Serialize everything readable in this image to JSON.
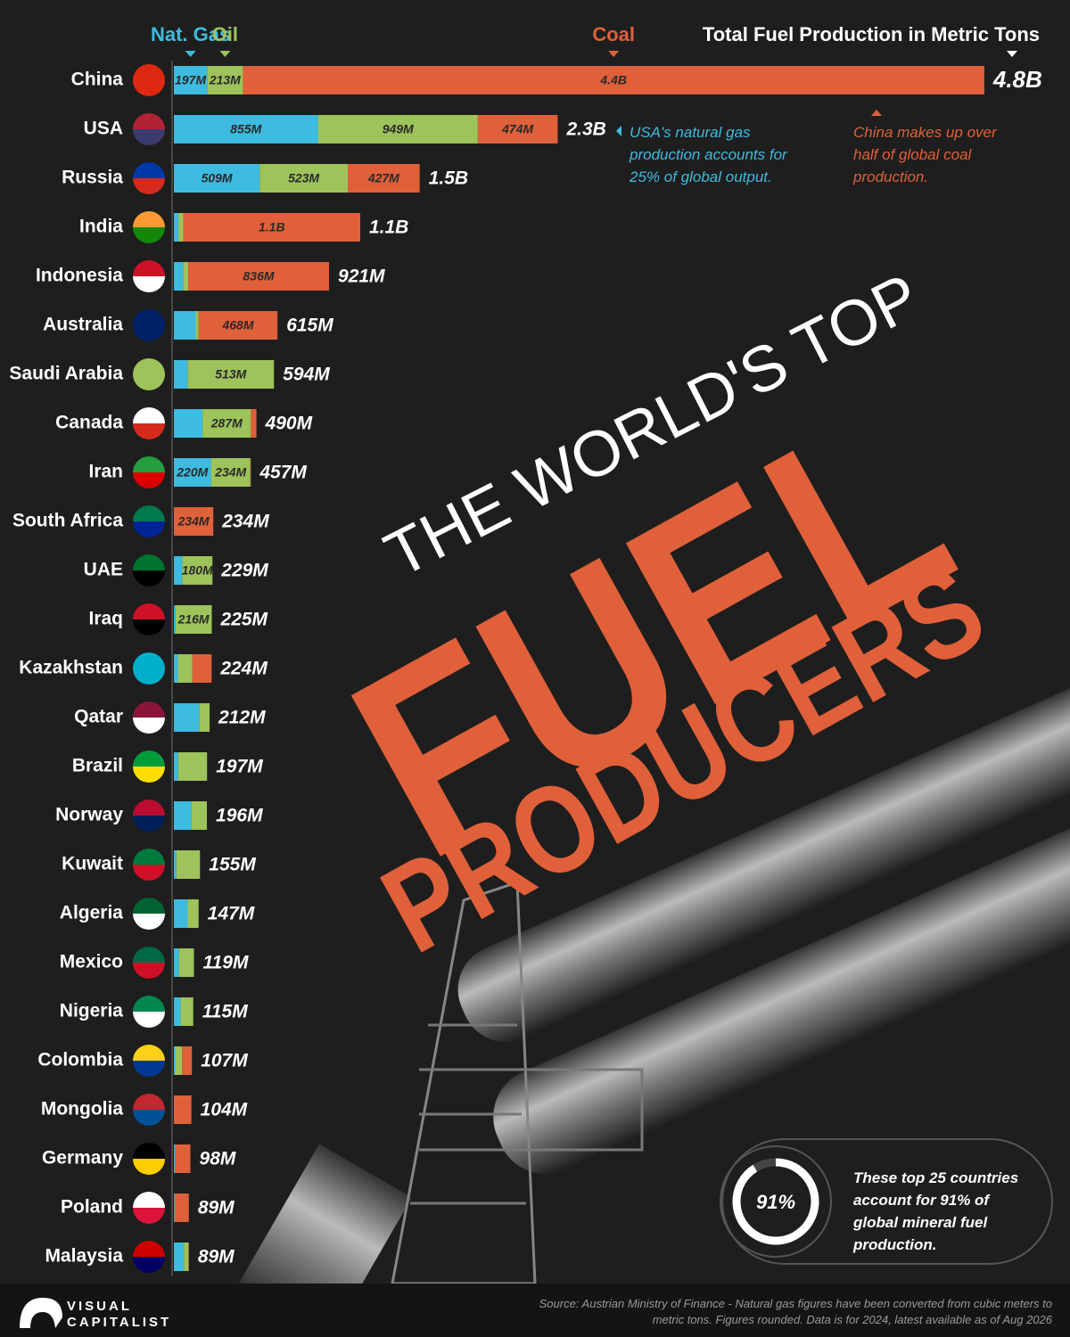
{
  "chart_data": {
    "type": "bar",
    "orientation": "horizontal",
    "stacked": true,
    "title": "THE WORLD'S TOP",
    "title_emphasis": "FUEL",
    "subtitle": "PRODUCERS",
    "value_axis_title": "Total Fuel Production in Metric Tons",
    "xlim": [
      0,
      4800000000
    ],
    "categories": [
      "China",
      "USA",
      "Russia",
      "India",
      "Indonesia",
      "Australia",
      "Saudi Arabia",
      "Canada",
      "Iran",
      "South Africa",
      "UAE",
      "Iraq",
      "Kazakhstan",
      "Qatar",
      "Brazil",
      "Norway",
      "Kuwait",
      "Algeria",
      "Mexico",
      "Nigeria",
      "Colombia",
      "Mongolia",
      "Germany",
      "Poland",
      "Malaysia"
    ],
    "series": [
      {
        "name": "Nat. Gas",
        "color": "#3dbbe0",
        "values": [
          197000000,
          855000000,
          509000000,
          27000000,
          55000000,
          130000000,
          81000000,
          170000000,
          220000000,
          0,
          49000000,
          9000000,
          24000000,
          150000000,
          25000000,
          104000000,
          15000000,
          82000000,
          30000000,
          40000000,
          8000000,
          0,
          5000000,
          4000000,
          60000000
        ],
        "value_labels": [
          "197M",
          "855M",
          "509M",
          null,
          null,
          null,
          null,
          null,
          "220M",
          null,
          null,
          null,
          null,
          null,
          null,
          null,
          null,
          null,
          null,
          null,
          null,
          null,
          null,
          null,
          null
        ]
      },
      {
        "name": "Oil",
        "color": "#9dc35a",
        "values": [
          213000000,
          949000000,
          523000000,
          29000000,
          30000000,
          17000000,
          513000000,
          287000000,
          234000000,
          0,
          180000000,
          216000000,
          86000000,
          62000000,
          172000000,
          92000000,
          140000000,
          65000000,
          89000000,
          75000000,
          40000000,
          0,
          0,
          0,
          27000000
        ],
        "value_labels": [
          "213M",
          "949M",
          "523M",
          null,
          null,
          null,
          "513M",
          "287M",
          "234M",
          null,
          "180M",
          "216M",
          null,
          null,
          null,
          null,
          null,
          null,
          null,
          null,
          null,
          null,
          null,
          null,
          null
        ]
      },
      {
        "name": "Coal",
        "color": "#e0603a",
        "values": [
          4400000000,
          474000000,
          427000000,
          1050000000,
          836000000,
          468000000,
          0,
          33000000,
          3000000,
          234000000,
          0,
          0,
          114000000,
          0,
          0,
          0,
          0,
          0,
          0,
          0,
          59000000,
          104000000,
          93000000,
          85000000,
          2000000
        ],
        "value_labels": [
          "4.4B",
          "474M",
          "427M",
          "1.1B",
          "836M",
          "468M",
          null,
          null,
          null,
          "234M",
          null,
          null,
          null,
          null,
          null,
          null,
          null,
          null,
          null,
          null,
          null,
          null,
          null,
          null,
          null
        ]
      }
    ],
    "totals": {
      "values": [
        4810000000,
        2278000000,
        1459000000,
        1106000000,
        921000000,
        615000000,
        594000000,
        490000000,
        457000000,
        234000000,
        229000000,
        225000000,
        224000000,
        212000000,
        197000000,
        196000000,
        155000000,
        147000000,
        119000000,
        115000000,
        107000000,
        104000000,
        98000000,
        89000000,
        89000000
      ],
      "value_labels": [
        "4.8B",
        "2.3B",
        "1.5B",
        "1.1B",
        "921M",
        "615M",
        "594M",
        "490M",
        "457M",
        "234M",
        "229M",
        "225M",
        "224M",
        "212M",
        "197M",
        "196M",
        "155M",
        "147M",
        "119M",
        "115M",
        "107M",
        "104M",
        "98M",
        "89M",
        "89M"
      ]
    },
    "annotations": [
      {
        "text": "USA's natural gas production accounts for 25% of global output."
      },
      {
        "text": "China makes up over half of global coal production."
      }
    ],
    "highlight": {
      "value": 91,
      "label": "91%",
      "text": "These top 25 countries account for 91% of global mineral fuel production."
    },
    "source": "Source: Austrian Ministry of Finance - Natural gas figures have been converted from cubic meters to metric tons. Figures rounded. Data is for 2024, latest available as of Aug 2026",
    "brand": [
      "VISUAL",
      "CAPITALIST"
    ]
  }
}
